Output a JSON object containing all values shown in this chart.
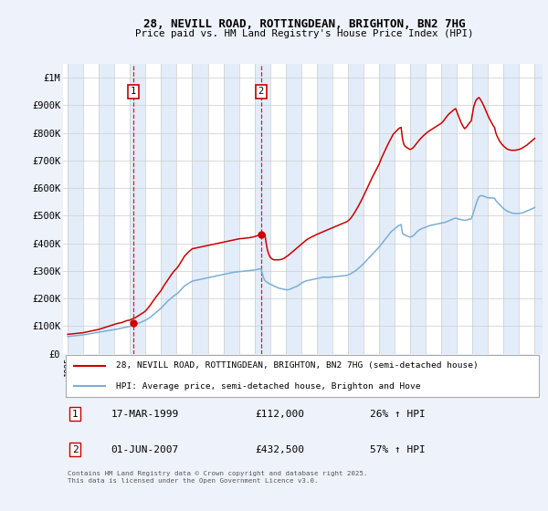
{
  "title": "28, NEVILL ROAD, ROTTINGDEAN, BRIGHTON, BN2 7HG",
  "subtitle": "Price paid vs. HM Land Registry's House Price Index (HPI)",
  "legend_line1": "28, NEVILL ROAD, ROTTINGDEAN, BRIGHTON, BN2 7HG (semi-detached house)",
  "legend_line2": "HPI: Average price, semi-detached house, Brighton and Hove",
  "footer": "Contains HM Land Registry data © Crown copyright and database right 2025.\nThis data is licensed under the Open Government Licence v3.0.",
  "sale1_date": "17-MAR-1999",
  "sale1_price": "£112,000",
  "sale1_hpi": "26% ↑ HPI",
  "sale1_x": 1999.21,
  "sale1_y": 112000,
  "sale2_date": "01-JUN-2007",
  "sale2_price": "£432,500",
  "sale2_hpi": "57% ↑ HPI",
  "sale2_x": 2007.42,
  "sale2_y": 432500,
  "vline1_x": 1999.21,
  "vline2_x": 2007.42,
  "red_color": "#cc0000",
  "blue_color": "#7aaed6",
  "background_color": "#eef2fb",
  "plot_bg": "#ffffff",
  "band_color": "#d8e6f7",
  "ylim": [
    0,
    1050000
  ],
  "xlim_start": 1994.7,
  "xlim_end": 2025.5,
  "yticks": [
    0,
    100000,
    200000,
    300000,
    400000,
    500000,
    600000,
    700000,
    800000,
    900000,
    1000000
  ],
  "ytick_labels": [
    "£0",
    "£100K",
    "£200K",
    "£300K",
    "£400K",
    "£500K",
    "£600K",
    "£700K",
    "£800K",
    "£900K",
    "£1M"
  ],
  "xticks": [
    1995,
    1996,
    1997,
    1998,
    1999,
    2000,
    2001,
    2002,
    2003,
    2004,
    2005,
    2006,
    2007,
    2008,
    2009,
    2010,
    2011,
    2012,
    2013,
    2014,
    2015,
    2016,
    2017,
    2018,
    2019,
    2020,
    2021,
    2022,
    2023,
    2024,
    2025
  ],
  "years_monthly": [
    1995.0,
    1995.083,
    1995.167,
    1995.25,
    1995.333,
    1995.417,
    1995.5,
    1995.583,
    1995.667,
    1995.75,
    1995.833,
    1995.917,
    1996.0,
    1996.083,
    1996.167,
    1996.25,
    1996.333,
    1996.417,
    1996.5,
    1996.583,
    1996.667,
    1996.75,
    1996.833,
    1996.917,
    1997.0,
    1997.083,
    1997.167,
    1997.25,
    1997.333,
    1997.417,
    1997.5,
    1997.583,
    1997.667,
    1997.75,
    1997.833,
    1997.917,
    1998.0,
    1998.083,
    1998.167,
    1998.25,
    1998.333,
    1998.417,
    1998.5,
    1998.583,
    1998.667,
    1998.75,
    1998.833,
    1998.917,
    1999.0,
    1999.083,
    1999.167,
    1999.25,
    1999.333,
    1999.417,
    1999.5,
    1999.583,
    1999.667,
    1999.75,
    1999.833,
    1999.917,
    2000.0,
    2000.083,
    2000.167,
    2000.25,
    2000.333,
    2000.417,
    2000.5,
    2000.583,
    2000.667,
    2000.75,
    2000.833,
    2000.917,
    2001.0,
    2001.083,
    2001.167,
    2001.25,
    2001.333,
    2001.417,
    2001.5,
    2001.583,
    2001.667,
    2001.75,
    2001.833,
    2001.917,
    2002.0,
    2002.083,
    2002.167,
    2002.25,
    2002.333,
    2002.417,
    2002.5,
    2002.583,
    2002.667,
    2002.75,
    2002.833,
    2002.917,
    2003.0,
    2003.083,
    2003.167,
    2003.25,
    2003.333,
    2003.417,
    2003.5,
    2003.583,
    2003.667,
    2003.75,
    2003.833,
    2003.917,
    2004.0,
    2004.083,
    2004.167,
    2004.25,
    2004.333,
    2004.417,
    2004.5,
    2004.583,
    2004.667,
    2004.75,
    2004.833,
    2004.917,
    2005.0,
    2005.083,
    2005.167,
    2005.25,
    2005.333,
    2005.417,
    2005.5,
    2005.583,
    2005.667,
    2005.75,
    2005.833,
    2005.917,
    2006.0,
    2006.083,
    2006.167,
    2006.25,
    2006.333,
    2006.417,
    2006.5,
    2006.583,
    2006.667,
    2006.75,
    2006.833,
    2006.917,
    2007.0,
    2007.083,
    2007.167,
    2007.25,
    2007.333,
    2007.417,
    2007.5,
    2007.583,
    2007.667,
    2007.75,
    2007.833,
    2007.917,
    2008.0,
    2008.083,
    2008.167,
    2008.25,
    2008.333,
    2008.417,
    2008.5,
    2008.583,
    2008.667,
    2008.75,
    2008.833,
    2008.917,
    2009.0,
    2009.083,
    2009.167,
    2009.25,
    2009.333,
    2009.417,
    2009.5,
    2009.583,
    2009.667,
    2009.75,
    2009.833,
    2009.917,
    2010.0,
    2010.083,
    2010.167,
    2010.25,
    2010.333,
    2010.417,
    2010.5,
    2010.583,
    2010.667,
    2010.75,
    2010.833,
    2010.917,
    2011.0,
    2011.083,
    2011.167,
    2011.25,
    2011.333,
    2011.417,
    2011.5,
    2011.583,
    2011.667,
    2011.75,
    2011.833,
    2011.917,
    2012.0,
    2012.083,
    2012.167,
    2012.25,
    2012.333,
    2012.417,
    2012.5,
    2012.583,
    2012.667,
    2012.75,
    2012.833,
    2012.917,
    2013.0,
    2013.083,
    2013.167,
    2013.25,
    2013.333,
    2013.417,
    2013.5,
    2013.583,
    2013.667,
    2013.75,
    2013.833,
    2013.917,
    2014.0,
    2014.083,
    2014.167,
    2014.25,
    2014.333,
    2014.417,
    2014.5,
    2014.583,
    2014.667,
    2014.75,
    2014.833,
    2014.917,
    2015.0,
    2015.083,
    2015.167,
    2015.25,
    2015.333,
    2015.417,
    2015.5,
    2015.583,
    2015.667,
    2015.75,
    2015.833,
    2015.917,
    2016.0,
    2016.083,
    2016.167,
    2016.25,
    2016.333,
    2016.417,
    2016.5,
    2016.583,
    2016.667,
    2016.75,
    2016.833,
    2016.917,
    2017.0,
    2017.083,
    2017.167,
    2017.25,
    2017.333,
    2017.417,
    2017.5,
    2017.583,
    2017.667,
    2017.75,
    2017.833,
    2017.917,
    2018.0,
    2018.083,
    2018.167,
    2018.25,
    2018.333,
    2018.417,
    2018.5,
    2018.583,
    2018.667,
    2018.75,
    2018.833,
    2018.917,
    2019.0,
    2019.083,
    2019.167,
    2019.25,
    2019.333,
    2019.417,
    2019.5,
    2019.583,
    2019.667,
    2019.75,
    2019.833,
    2019.917,
    2020.0,
    2020.083,
    2020.167,
    2020.25,
    2020.333,
    2020.417,
    2020.5,
    2020.583,
    2020.667,
    2020.75,
    2020.833,
    2020.917,
    2021.0,
    2021.083,
    2021.167,
    2021.25,
    2021.333,
    2021.417,
    2021.5,
    2021.583,
    2021.667,
    2021.75,
    2021.833,
    2021.917,
    2022.0,
    2022.083,
    2022.167,
    2022.25,
    2022.333,
    2022.417,
    2022.5,
    2022.583,
    2022.667,
    2022.75,
    2022.833,
    2022.917,
    2023.0,
    2023.083,
    2023.167,
    2023.25,
    2023.333,
    2023.417,
    2023.5,
    2023.583,
    2023.667,
    2023.75,
    2023.833,
    2023.917,
    2024.0,
    2024.083,
    2024.167,
    2024.25,
    2024.333,
    2024.417,
    2024.5,
    2024.583,
    2024.667,
    2024.75,
    2024.833,
    2024.917,
    2025.0
  ],
  "hpi_values": [
    62000,
    62500,
    63000,
    63500,
    64000,
    64500,
    65000,
    65500,
    66000,
    66500,
    67000,
    67500,
    68000,
    68800,
    69600,
    70400,
    71200,
    72000,
    72800,
    73600,
    74400,
    75200,
    76000,
    76800,
    77600,
    78400,
    79200,
    80000,
    80800,
    81600,
    82400,
    83200,
    84000,
    84800,
    85600,
    86400,
    87200,
    88000,
    89000,
    90000,
    91000,
    92000,
    93000,
    94000,
    95000,
    96000,
    97000,
    98000,
    99000,
    100500,
    102000,
    103500,
    105000,
    107000,
    109000,
    111000,
    113000,
    115000,
    117000,
    119000,
    121000,
    124000,
    127000,
    130000,
    133000,
    137000,
    141000,
    145000,
    149000,
    153000,
    157000,
    161000,
    165000,
    170000,
    175000,
    180000,
    185000,
    190000,
    194000,
    198000,
    202000,
    206000,
    210000,
    213000,
    216000,
    220000,
    225000,
    230000,
    235000,
    240000,
    245000,
    248000,
    251000,
    254000,
    257000,
    260000,
    263000,
    264000,
    265000,
    266000,
    267000,
    268000,
    269000,
    270000,
    271000,
    272000,
    273000,
    274000,
    275000,
    276000,
    277000,
    278000,
    279000,
    280000,
    281000,
    282000,
    283000,
    284000,
    285000,
    286000,
    287000,
    288000,
    289000,
    290000,
    291000,
    292000,
    293000,
    294000,
    295000,
    295500,
    296000,
    296500,
    297000,
    297500,
    298000,
    298500,
    299000,
    299500,
    300000,
    300500,
    301000,
    301500,
    302000,
    302500,
    303000,
    304000,
    305000,
    306000,
    307000,
    308000,
    290000,
    275000,
    265000,
    260000,
    258000,
    255000,
    252000,
    250000,
    248000,
    245000,
    243000,
    241000,
    239000,
    237000,
    236000,
    235000,
    234000,
    233000,
    232000,
    231000,
    232000,
    233000,
    235000,
    237000,
    239000,
    241000,
    243000,
    245000,
    248000,
    251000,
    255000,
    258000,
    260000,
    262000,
    264000,
    265000,
    266000,
    267000,
    268000,
    269000,
    270000,
    271000,
    272000,
    273000,
    274000,
    275000,
    276000,
    277000,
    277000,
    277000,
    277000,
    277000,
    277000,
    277500,
    278000,
    278500,
    279000,
    279500,
    280000,
    280500,
    281000,
    281500,
    282000,
    282500,
    283000,
    283500,
    285000,
    287000,
    289000,
    292000,
    295000,
    298000,
    301000,
    305000,
    309000,
    313000,
    317000,
    321000,
    326000,
    331000,
    336000,
    341000,
    346000,
    351000,
    356000,
    361000,
    366000,
    371000,
    376000,
    381000,
    386000,
    392000,
    398000,
    404000,
    410000,
    416000,
    422000,
    428000,
    434000,
    440000,
    445000,
    448000,
    452000,
    456000,
    460000,
    464000,
    466000,
    468000,
    436000,
    432000,
    430000,
    428000,
    426000,
    424000,
    422000,
    424000,
    426000,
    430000,
    435000,
    440000,
    445000,
    448000,
    451000,
    453000,
    455000,
    457000,
    458000,
    460000,
    462000,
    464000,
    465000,
    466000,
    467000,
    468000,
    469000,
    470000,
    471000,
    472000,
    473000,
    474000,
    475000,
    476000,
    478000,
    480000,
    482000,
    484000,
    486000,
    488000,
    490000,
    491000,
    490000,
    488000,
    487000,
    486000,
    485000,
    484000,
    483000,
    484000,
    485000,
    487000,
    488000,
    488000,
    500000,
    515000,
    530000,
    545000,
    558000,
    568000,
    572000,
    572000,
    572000,
    570000,
    568000,
    566000,
    565000,
    565000,
    564000,
    564000,
    564000,
    563000,
    555000,
    550000,
    545000,
    540000,
    535000,
    530000,
    525000,
    522000,
    519000,
    516000,
    514000,
    512000,
    510000,
    509000,
    508000,
    508000,
    508000,
    508000,
    508000,
    509000,
    510000,
    511000,
    513000,
    515000,
    517000,
    519000,
    521000,
    523000,
    525000,
    527000,
    530000
  ],
  "red_values": [
    70000,
    70500,
    71000,
    71500,
    72000,
    72500,
    73000,
    73500,
    74000,
    74500,
    75000,
    75500,
    76000,
    77000,
    78000,
    79000,
    80000,
    81000,
    82000,
    83000,
    84000,
    85000,
    86000,
    87000,
    88000,
    89500,
    91000,
    92500,
    94000,
    95500,
    97000,
    98500,
    100000,
    101500,
    103000,
    104500,
    106000,
    107500,
    109000,
    110000,
    111000,
    112000,
    113000,
    115000,
    117000,
    119000,
    120000,
    121000,
    122000,
    124000,
    126000,
    128000,
    130000,
    133000,
    136000,
    139000,
    142000,
    145000,
    148000,
    151000,
    155000,
    160000,
    166000,
    172000,
    178000,
    185000,
    192000,
    198000,
    205000,
    211000,
    217000,
    223000,
    229000,
    237000,
    245000,
    252000,
    259000,
    266000,
    273000,
    280000,
    287000,
    293000,
    299000,
    304000,
    309000,
    315000,
    322000,
    330000,
    337000,
    345000,
    353000,
    358000,
    363000,
    368000,
    372000,
    376000,
    380000,
    381000,
    382000,
    383000,
    384000,
    385000,
    386000,
    387000,
    388000,
    389000,
    390000,
    391000,
    392000,
    393000,
    394000,
    395000,
    396000,
    397000,
    398000,
    399000,
    400000,
    401000,
    402000,
    403000,
    404000,
    405000,
    406000,
    407000,
    408000,
    409000,
    410000,
    411000,
    412000,
    413000,
    414000,
    415000,
    416000,
    416500,
    417000,
    417500,
    418000,
    418500,
    419000,
    419500,
    420000,
    421000,
    422000,
    423000,
    424000,
    425500,
    427000,
    429000,
    431000,
    433000,
    435000,
    435000,
    432000,
    400000,
    375000,
    360000,
    350000,
    345000,
    342000,
    340000,
    340000,
    340000,
    340000,
    340000,
    341000,
    342000,
    344000,
    346000,
    350000,
    353000,
    356000,
    360000,
    364000,
    368000,
    372000,
    376000,
    380000,
    384000,
    388000,
    392000,
    396000,
    400000,
    404000,
    408000,
    412000,
    415000,
    418000,
    420000,
    423000,
    425000,
    427000,
    430000,
    432000,
    434000,
    436000,
    438000,
    440000,
    442000,
    444000,
    446000,
    448000,
    450000,
    452000,
    454000,
    456000,
    458000,
    460000,
    462000,
    464000,
    466000,
    468000,
    470000,
    472000,
    474000,
    476000,
    478000,
    481000,
    485000,
    490000,
    496000,
    503000,
    510000,
    518000,
    526000,
    534000,
    543000,
    552000,
    561000,
    571000,
    581000,
    591000,
    601000,
    611000,
    621000,
    631000,
    641000,
    650000,
    659000,
    668000,
    677000,
    686000,
    698000,
    710000,
    720000,
    730000,
    740000,
    750000,
    760000,
    769000,
    778000,
    787000,
    796000,
    800000,
    805000,
    810000,
    815000,
    818000,
    820000,
    780000,
    760000,
    752000,
    748000,
    745000,
    742000,
    740000,
    742000,
    745000,
    750000,
    756000,
    762000,
    768000,
    774000,
    779000,
    784000,
    789000,
    793000,
    797000,
    801000,
    805000,
    808000,
    811000,
    814000,
    817000,
    820000,
    823000,
    826000,
    829000,
    832000,
    835000,
    840000,
    845000,
    852000,
    858000,
    864000,
    869000,
    873000,
    877000,
    881000,
    885000,
    888000,
    876000,
    863000,
    851000,
    840000,
    830000,
    822000,
    815000,
    820000,
    825000,
    832000,
    838000,
    843000,
    870000,
    895000,
    910000,
    920000,
    925000,
    928000,
    922000,
    914000,
    905000,
    895000,
    884000,
    873000,
    862000,
    852000,
    843000,
    834000,
    826000,
    820000,
    800000,
    788000,
    778000,
    770000,
    763000,
    757000,
    752000,
    748000,
    744000,
    741000,
    739000,
    738000,
    737000,
    737000,
    737000,
    737000,
    738000,
    739000,
    740000,
    742000,
    744000,
    747000,
    750000,
    753000,
    756000,
    760000,
    764000,
    768000,
    772000,
    776000,
    780000
  ]
}
